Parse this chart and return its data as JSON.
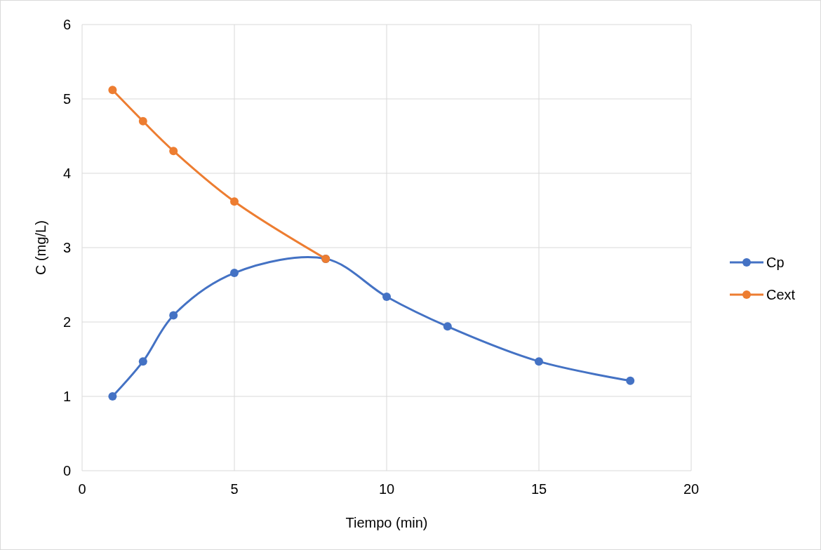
{
  "chart_data": {
    "type": "line",
    "xlabel": "Tiempo (min)",
    "ylabel": "C (mg/L)",
    "xlim": [
      0,
      20
    ],
    "xticks": [
      0,
      5,
      10,
      15,
      20
    ],
    "ylim": [
      0,
      6
    ],
    "yticks": [
      0,
      1,
      2,
      3,
      4,
      5,
      6
    ],
    "grid": true,
    "legend": "right",
    "marker": "circle",
    "line_style": "solid",
    "series": [
      {
        "name": "Cp",
        "color": "#4472c4",
        "x": [
          1,
          2,
          3,
          5,
          8,
          10,
          12,
          15,
          18
        ],
        "values": [
          1.0,
          1.47,
          2.09,
          2.66,
          2.85,
          2.34,
          1.94,
          1.47,
          1.21
        ]
      },
      {
        "name": "Cext",
        "color": "#ed7d31",
        "x": [
          1,
          2,
          3,
          5,
          8
        ],
        "values": [
          5.12,
          4.7,
          4.3,
          3.62,
          2.85
        ]
      }
    ]
  }
}
